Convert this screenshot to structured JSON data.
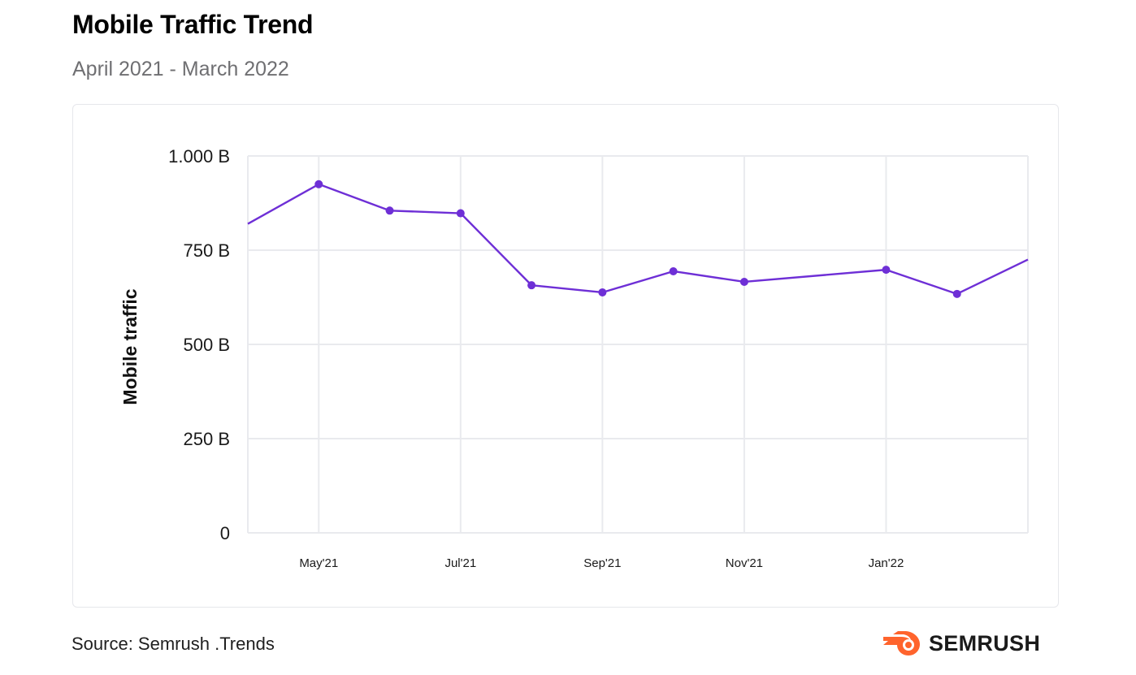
{
  "header": {
    "title": "Mobile Traffic Trend",
    "subtitle": "April 2021 - March 2022"
  },
  "footer": {
    "source": "Source: Semrush .Trends",
    "brand": "SEMRUSH",
    "brand_icon": "semrush-flame-icon",
    "brand_color": "#FF642D"
  },
  "chart_data": {
    "type": "line",
    "title": "",
    "xlabel": "",
    "ylabel": "Mobile traffic",
    "ylim": [
      0,
      1000
    ],
    "yticks": [
      {
        "value": 0,
        "label": "0"
      },
      {
        "value": 250,
        "label": "250 B"
      },
      {
        "value": 500,
        "label": "500 B"
      },
      {
        "value": 750,
        "label": "750 B"
      },
      {
        "value": 1000,
        "label": "1.000 B"
      }
    ],
    "xticks": [
      {
        "index": 1,
        "label": "May'21"
      },
      {
        "index": 3,
        "label": "Jul'21"
      },
      {
        "index": 5,
        "label": "Sep'21"
      },
      {
        "index": 7,
        "label": "Nov'21"
      },
      {
        "index": 9,
        "label": "Jan'22"
      }
    ],
    "series": [
      {
        "color": "#6E2FD6",
        "points": [
          {
            "month": "Apr'21",
            "value": 820,
            "marker": false
          },
          {
            "month": "May'21",
            "value": 925,
            "marker": true
          },
          {
            "month": "Jun'21",
            "value": 855,
            "marker": true
          },
          {
            "month": "Jul'21",
            "value": 848,
            "marker": true
          },
          {
            "month": "Aug'21",
            "value": 657,
            "marker": true
          },
          {
            "month": "Sep'21",
            "value": 638,
            "marker": true
          },
          {
            "month": "Oct'21",
            "value": 694,
            "marker": true
          },
          {
            "month": "Nov'21",
            "value": 666,
            "marker": true
          },
          {
            "month": "Jan'22",
            "value": 698,
            "marker": true,
            "x_index": 9
          },
          {
            "month": "Feb'22",
            "value": 634,
            "marker": true,
            "x_index": 10
          },
          {
            "month": "Mar'22",
            "value": 725,
            "marker": false,
            "x_index": 11
          }
        ]
      }
    ],
    "grid": true,
    "line_color": "#6E2FD6",
    "grid_color": "#E9EAEE"
  }
}
